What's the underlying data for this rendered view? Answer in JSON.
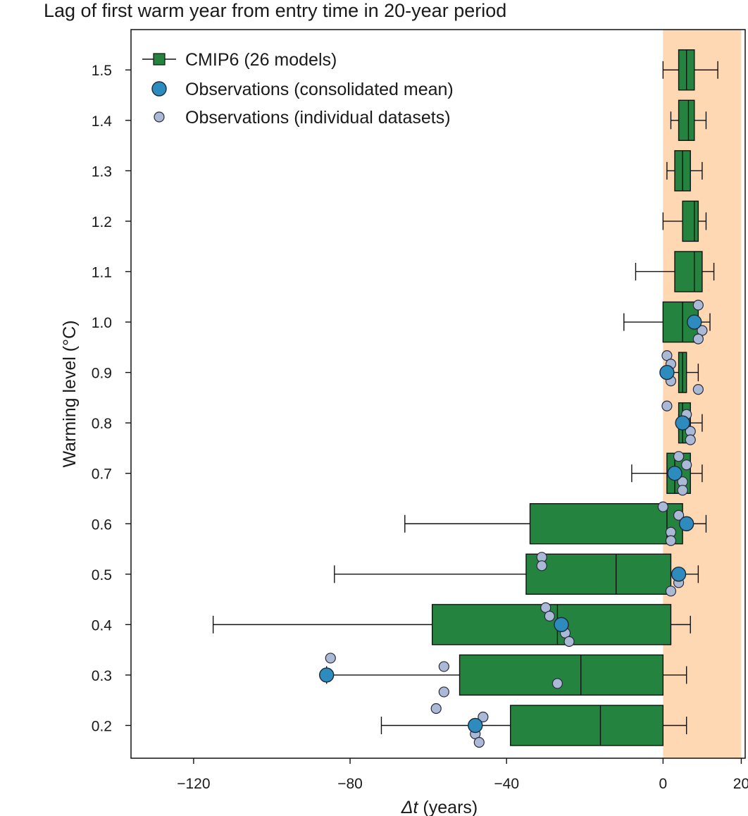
{
  "chart_data": {
    "type": "boxplot",
    "title": "Lag of first warm year from entry time in 20-year period",
    "xlabel_symbol": "Δt",
    "xlabel_unit": " (years)",
    "ylabel": "Warming level (°C)",
    "xlim": [
      -136,
      21
    ],
    "ylim": [
      0.135,
      1.58
    ],
    "xticks": [
      -120,
      -80,
      -40,
      0,
      20
    ],
    "yticks": [
      0.2,
      0.3,
      0.4,
      0.5,
      0.6,
      0.7,
      0.8,
      0.9,
      1.0,
      1.1,
      1.2,
      1.3,
      1.4,
      1.5
    ],
    "shaded_region": {
      "x0": 0,
      "x1": 20,
      "color": "#fdd8b3"
    },
    "colors": {
      "box": "#24843f",
      "obs_mean": "#2e8bbd",
      "obs_individual": "#a9b9d6",
      "line": "#111111"
    },
    "legend": [
      {
        "label": "CMIP6 (26 models)",
        "kind": "box"
      },
      {
        "label": "Observations (consolidated mean)",
        "kind": "mean"
      },
      {
        "label": "Observations (individual datasets)",
        "kind": "individual"
      }
    ],
    "series": [
      {
        "level": 1.5,
        "whisker_low": 0,
        "q1": 4,
        "median": 6,
        "q3": 8,
        "whisker_high": 14,
        "obs_mean": null,
        "obs_individual": []
      },
      {
        "level": 1.4,
        "whisker_low": 2,
        "q1": 4,
        "median": 6.5,
        "q3": 8,
        "whisker_high": 11,
        "obs_mean": null,
        "obs_individual": []
      },
      {
        "level": 1.3,
        "whisker_low": 1,
        "q1": 3,
        "median": 5,
        "q3": 7,
        "whisker_high": 10,
        "obs_mean": null,
        "obs_individual": []
      },
      {
        "level": 1.2,
        "whisker_low": 0,
        "q1": 5,
        "median": 8,
        "q3": 9,
        "whisker_high": 11,
        "obs_mean": null,
        "obs_individual": []
      },
      {
        "level": 1.1,
        "whisker_low": -7,
        "q1": 3,
        "median": 8,
        "q3": 10,
        "whisker_high": 13,
        "obs_mean": null,
        "obs_individual": []
      },
      {
        "level": 1.0,
        "whisker_low": -10,
        "q1": 0,
        "median": 5,
        "q3": 9,
        "whisker_high": 12,
        "obs_mean": 8,
        "obs_individual": [
          9,
          10,
          9
        ]
      },
      {
        "level": 0.9,
        "whisker_low": 1,
        "q1": 4,
        "median": 5,
        "q3": 6,
        "whisker_high": 9,
        "obs_mean": 1,
        "obs_individual": [
          1,
          2,
          2,
          9
        ]
      },
      {
        "level": 0.8,
        "whisker_low": 4,
        "q1": 4,
        "median": 5,
        "q3": 7,
        "whisker_high": 10,
        "obs_mean": 5,
        "obs_individual": [
          1,
          6,
          7,
          7
        ]
      },
      {
        "level": 0.7,
        "whisker_low": -8,
        "q1": 1,
        "median": 3,
        "q3": 7,
        "whisker_high": 10,
        "obs_mean": 3,
        "obs_individual": [
          4,
          6,
          5,
          5
        ]
      },
      {
        "level": 0.6,
        "whisker_low": -66,
        "q1": -34,
        "median": 1,
        "q3": 5,
        "whisker_high": 11,
        "obs_mean": 6,
        "obs_individual": [
          0,
          4,
          2,
          2
        ]
      },
      {
        "level": 0.5,
        "whisker_low": -84,
        "q1": -35,
        "median": -12,
        "q3": 2,
        "whisker_high": 9,
        "obs_mean": 4,
        "obs_individual": [
          -31,
          -31,
          4,
          2
        ]
      },
      {
        "level": 0.4,
        "whisker_low": -115,
        "q1": -59,
        "median": -27,
        "q3": 2,
        "whisker_high": 7,
        "obs_mean": -26,
        "obs_individual": [
          -30,
          -29,
          -25,
          -24
        ]
      },
      {
        "level": 0.3,
        "whisker_low": -86,
        "q1": -52,
        "median": -21,
        "q3": 0,
        "whisker_high": 6,
        "obs_mean": -86,
        "obs_individual": [
          -85,
          -56,
          -27,
          -56
        ]
      },
      {
        "level": 0.2,
        "whisker_low": -72,
        "q1": -39,
        "median": -16,
        "q3": 0,
        "whisker_high": 6,
        "obs_mean": -48,
        "obs_individual": [
          -58,
          -46,
          -48,
          -47
        ]
      }
    ]
  }
}
